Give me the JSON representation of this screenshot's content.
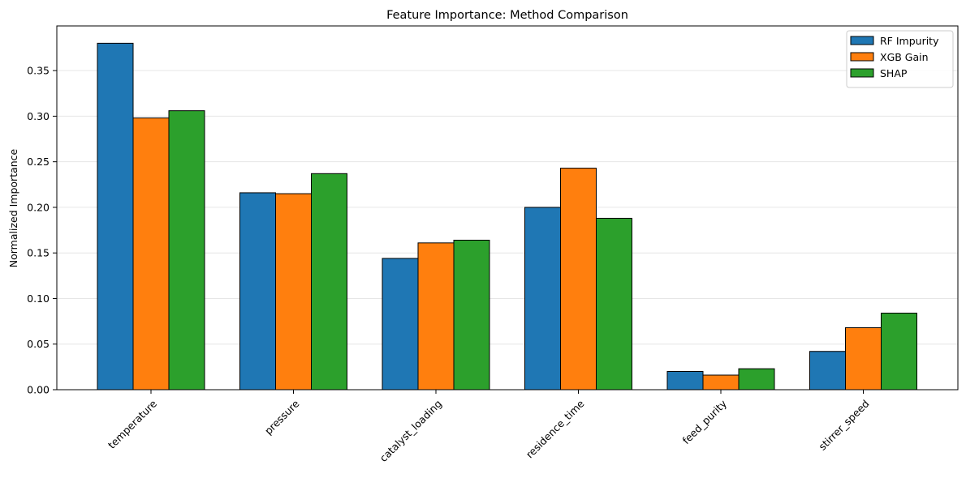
{
  "chart_data": {
    "type": "bar",
    "title": "Feature Importance: Method Comparison",
    "xlabel": "",
    "ylabel": "Normalized Importance",
    "categories": [
      "temperature",
      "pressure",
      "catalyst_loading",
      "residence_time",
      "feed_purity",
      "stirrer_speed"
    ],
    "series": [
      {
        "name": "RF Impurity",
        "color": "#1f77b4",
        "values": [
          0.38,
          0.216,
          0.144,
          0.2,
          0.02,
          0.042
        ]
      },
      {
        "name": "XGB Gain",
        "color": "#ff7f0e",
        "values": [
          0.298,
          0.215,
          0.161,
          0.243,
          0.016,
          0.068
        ]
      },
      {
        "name": "SHAP",
        "color": "#2ca02c",
        "values": [
          0.306,
          0.237,
          0.164,
          0.188,
          0.023,
          0.084
        ]
      }
    ],
    "ylim": [
      0,
      0.399
    ],
    "yticks": [
      0.0,
      0.05,
      0.1,
      0.15,
      0.2,
      0.25,
      0.3,
      0.35
    ],
    "ytick_labels": [
      "0.00",
      "0.05",
      "0.10",
      "0.15",
      "0.20",
      "0.25",
      "0.30",
      "0.35"
    ],
    "grid": "y",
    "legend_position": "top-right"
  }
}
